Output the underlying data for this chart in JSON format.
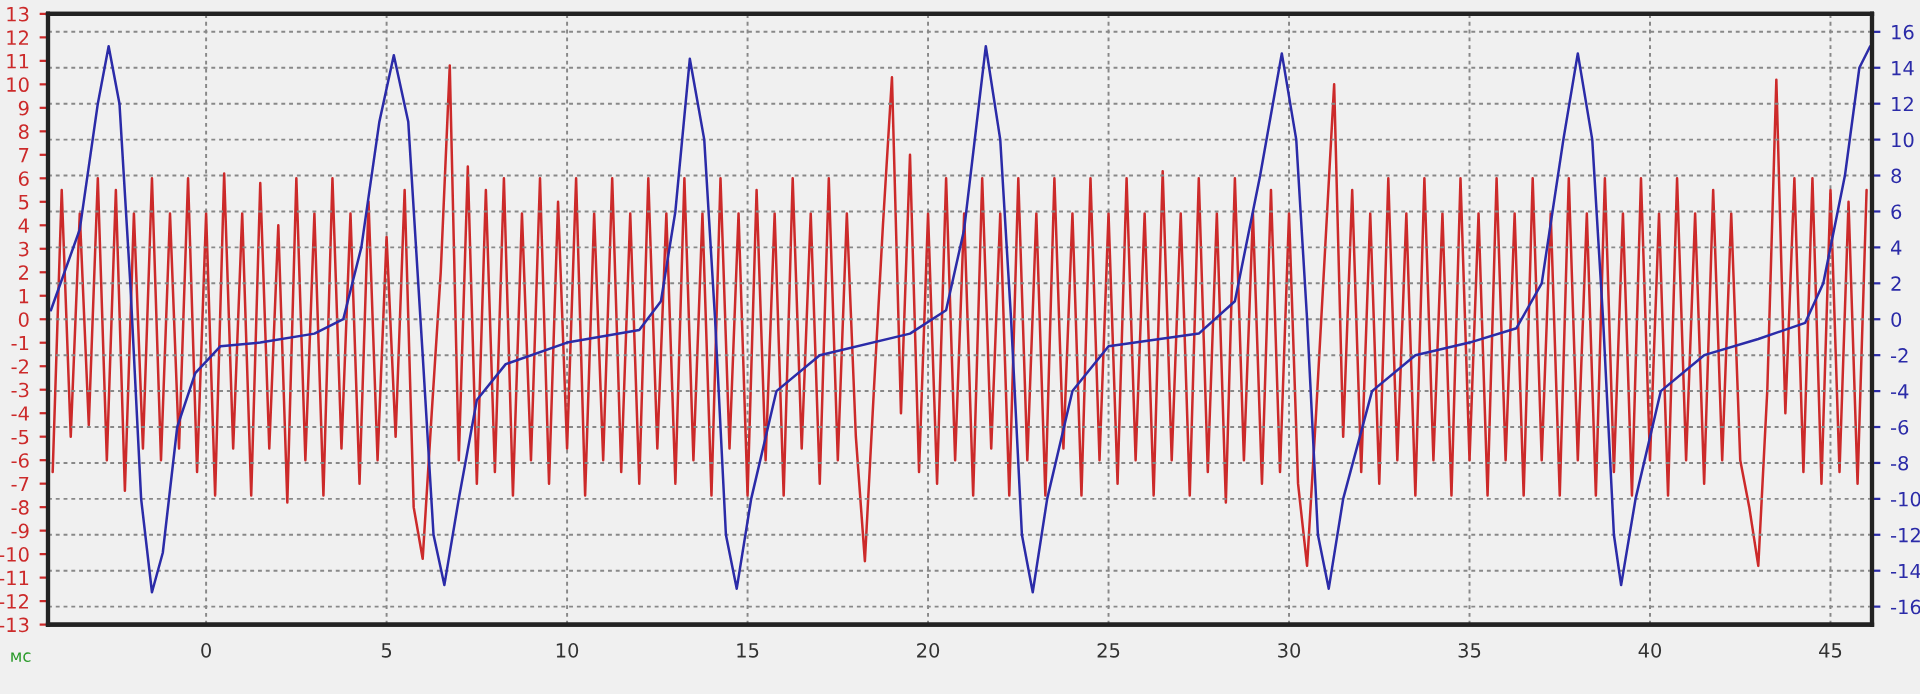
{
  "chart_data": {
    "type": "line",
    "xlabel": "мс",
    "xlim": [
      -4.38,
      46.15
    ],
    "xticks": [
      0,
      5,
      10,
      15,
      20,
      25,
      30,
      35,
      40,
      45
    ],
    "ylim": [
      -13,
      13
    ],
    "yticks": [
      -13,
      -12,
      -11,
      -10,
      -9,
      -8,
      -7,
      -6,
      -5,
      -4,
      -3,
      -2,
      -1,
      0,
      1,
      2,
      3,
      4,
      5,
      6,
      7,
      8,
      9,
      10,
      11,
      12,
      13
    ],
    "y2lim": [
      -17,
      17
    ],
    "y2ticks": [
      -16,
      -14,
      -12,
      -10,
      -8,
      -6,
      -4,
      -2,
      0,
      2,
      4,
      6,
      8,
      10,
      12,
      14,
      16
    ],
    "grid": true,
    "legend": false,
    "line_style": "solid",
    "marker": "none",
    "x": [
      -4.25,
      -4.0,
      -3.75,
      -3.5,
      -3.25,
      -3.0,
      -2.75,
      -2.5,
      -2.25,
      -2.0,
      -1.75,
      -1.5,
      -1.25,
      -1.0,
      -0.75,
      -0.5,
      -0.25,
      0.0,
      0.25,
      0.5,
      0.75,
      1.0,
      1.25,
      1.5,
      1.75,
      2.0,
      2.25,
      2.5,
      2.75,
      3.0,
      3.25,
      3.5,
      3.75,
      4.0,
      4.25,
      4.5,
      4.75,
      5.0,
      5.25,
      5.5,
      5.75,
      6.0,
      6.25,
      6.5,
      6.75,
      7.0,
      7.25,
      7.5,
      7.75,
      8.0,
      8.25,
      8.5,
      8.75,
      9.0,
      9.25,
      9.5,
      9.75,
      10.0,
      10.25,
      10.5,
      10.75,
      11.0,
      11.25,
      11.5,
      11.75,
      12.0,
      12.25,
      12.5,
      12.75,
      13.0,
      13.25,
      13.5,
      13.75,
      14.0,
      14.25,
      14.5,
      14.75,
      15.0,
      15.25,
      15.5,
      15.75,
      16.0,
      16.25,
      16.5,
      16.75,
      17.0,
      17.25,
      17.5,
      17.75,
      18.0,
      18.25,
      18.5,
      18.75,
      19.0,
      19.25,
      19.5,
      19.75,
      20.0,
      20.25,
      20.5,
      20.75,
      21.0,
      21.25,
      21.5,
      21.75,
      22.0,
      22.25,
      22.5,
      22.75,
      23.0,
      23.25,
      23.5,
      23.75,
      24.0,
      24.25,
      24.5,
      24.75,
      25.0,
      25.25,
      25.5,
      25.75,
      26.0,
      26.25,
      26.5,
      26.75,
      27.0,
      27.25,
      27.5,
      27.75,
      28.0,
      28.25,
      28.5,
      28.75,
      29.0,
      29.25,
      29.5,
      29.75,
      30.0,
      30.25,
      30.5,
      30.75,
      31.0,
      31.25,
      31.5,
      31.75,
      32.0,
      32.25,
      32.5,
      32.75,
      33.0,
      33.25,
      33.5,
      33.75,
      34.0,
      34.25,
      34.5,
      34.75,
      35.0,
      35.25,
      35.5,
      35.75,
      36.0,
      36.25,
      36.5,
      36.75,
      37.0,
      37.25,
      37.5,
      37.75,
      38.0,
      38.25,
      38.5,
      38.75,
      39.0,
      39.25,
      39.5,
      39.75,
      40.0,
      40.25,
      40.5,
      40.75,
      41.0,
      41.25,
      41.5,
      41.75,
      42.0,
      42.25,
      42.5,
      42.75,
      43.0,
      43.25,
      43.5,
      43.75,
      44.0,
      44.25,
      44.5,
      44.75,
      45.0,
      45.25,
      45.5,
      45.75,
      46.0
    ],
    "series": [
      {
        "color": "#cc2a2a",
        "values": [
          -6.5,
          5.5,
          -5,
          4.5,
          -4.5,
          6,
          -6,
          5.5,
          -7.3,
          4.5,
          -5.5,
          6,
          -6,
          4.5,
          -5.5,
          6,
          -6.5,
          4.5,
          -7.5,
          6.2,
          -5.5,
          4.5,
          -7.5,
          5.8,
          -5.5,
          4,
          -7.8,
          6,
          -6,
          4.5,
          -7.5,
          6,
          -5.5,
          4.5,
          -7,
          5,
          -6,
          3.5,
          -5,
          5.5,
          -8,
          -10.2,
          -4,
          2,
          10.8,
          -6,
          6.5,
          -7,
          5.5,
          -6.5,
          6,
          -7.5,
          4.5,
          -6,
          6,
          -7,
          5,
          -5.5,
          6,
          -7.5,
          4.5,
          -6,
          6,
          -6.5,
          4.5,
          -7,
          6,
          -5.5,
          4.5,
          -7,
          6,
          -6,
          4.5,
          -7.5,
          6,
          -5.5,
          4.5,
          -7.5,
          5.5,
          -6,
          4.5,
          -7.5,
          6,
          -5.5,
          4.5,
          -7,
          6,
          -6,
          4.5,
          -5,
          -10.3,
          -3,
          4,
          10.3,
          -4,
          7,
          -6.5,
          4.5,
          -7,
          6,
          -6,
          4.5,
          -7.5,
          6,
          -5.5,
          4.5,
          -7.5,
          6,
          -6,
          4.5,
          -7.5,
          6,
          -5.5,
          4.5,
          -7.5,
          6,
          -6,
          4.5,
          -7,
          6,
          -6,
          4.5,
          -7.5,
          6.3,
          -6,
          4.5,
          -7.5,
          6,
          -6.5,
          4.5,
          -7.8,
          6,
          -6,
          4.5,
          -7,
          5.5,
          -6.5,
          4.5,
          -7,
          -10.5,
          -4,
          3,
          10,
          -5,
          5.5,
          -6.5,
          4.5,
          -7,
          6,
          -6,
          4.5,
          -7.5,
          6,
          -6,
          4.5,
          -7.5,
          6,
          -6,
          4.5,
          -7.5,
          6,
          -6,
          4.5,
          -7.5,
          6,
          -6,
          4.5,
          -7.5,
          6,
          -6,
          4.5,
          -7.5,
          6,
          -6.5,
          4.5,
          -7.5,
          6,
          -6,
          4.5,
          -7.5,
          6,
          -6,
          4.5,
          -7,
          5.5,
          -6,
          4.5,
          -6,
          -8,
          -10.5,
          -3,
          10.2,
          -4,
          6,
          -6.5,
          6,
          -7,
          5.5,
          -6.5,
          5,
          -7,
          5.5
        ]
      },
      {
        "color": "#2b2ba8",
        "axis": "y2",
        "x": [
          -4.3,
          -3.5,
          -3.0,
          -2.7,
          -2.4,
          -2.1,
          -1.8,
          -1.5,
          -1.2,
          -0.8,
          -0.3,
          0.4,
          1.5,
          3.0,
          3.8,
          4.3,
          4.8,
          5.2,
          5.6,
          6.0,
          6.3,
          6.6,
          7.0,
          7.5,
          8.3,
          10.0,
          12.0,
          12.6,
          13.0,
          13.4,
          13.8,
          14.1,
          14.4,
          14.7,
          15.1,
          15.8,
          17.0,
          19.5,
          20.5,
          21.0,
          21.6,
          22.0,
          22.3,
          22.6,
          22.9,
          23.3,
          24.0,
          25.0,
          27.5,
          28.5,
          29.2,
          29.8,
          30.2,
          30.5,
          30.8,
          31.1,
          31.5,
          32.3,
          33.5,
          35.0,
          36.3,
          37.0,
          37.6,
          38.0,
          38.4,
          38.7,
          39.0,
          39.2,
          39.6,
          40.3,
          41.5,
          43.0,
          44.3,
          44.8,
          45.4,
          45.8,
          46.1
        ],
        "values": [
          0.5,
          5,
          12,
          15.2,
          12,
          2,
          -10,
          -15.2,
          -13,
          -6,
          -3,
          -1.5,
          -1.3,
          -0.8,
          0,
          4,
          11,
          14.7,
          11,
          -2,
          -12,
          -14.8,
          -10,
          -4.5,
          -2.5,
          -1.3,
          -0.6,
          1,
          6,
          14.5,
          10,
          0,
          -12,
          -15,
          -10,
          -4,
          -2,
          -0.8,
          0.5,
          5,
          15.2,
          10,
          0,
          -12,
          -15.2,
          -10,
          -4,
          -1.5,
          -0.8,
          1,
          8,
          14.8,
          10,
          0,
          -12,
          -15,
          -10,
          -4,
          -2,
          -1.3,
          -0.5,
          2,
          10,
          14.8,
          10,
          0,
          -12,
          -14.8,
          -10,
          -4,
          -2,
          -1.1,
          -0.2,
          2,
          8,
          14,
          15.2
        ]
      }
    ]
  }
}
